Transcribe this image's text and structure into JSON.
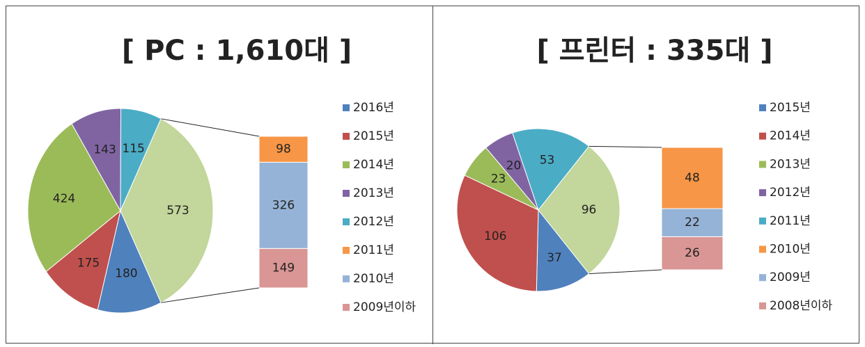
{
  "chart_data": [
    {
      "type": "pie",
      "title": "[ PC : 1,610대 ]",
      "categories": [
        "2016년",
        "2015년",
        "2014년",
        "2013년",
        "2012년",
        "2011년",
        "2010년",
        "2009년이하"
      ],
      "values": [
        180,
        175,
        424,
        143,
        115,
        98,
        326,
        149
      ],
      "colors": [
        "#4f81bd",
        "#c0504d",
        "#9bbb59",
        "#8064a2",
        "#4bacc6",
        "#f79646",
        "#95b3d7",
        "#d99694"
      ],
      "pie_count": 5,
      "other_value": 573,
      "other_color": "#c3d69b"
    },
    {
      "type": "pie",
      "title": "[ 프린터 : 335대 ]",
      "categories": [
        "2015년",
        "2014년",
        "2013년",
        "2012년",
        "2011년",
        "2010년",
        "2009년",
        "2008년이하"
      ],
      "values": [
        37,
        106,
        23,
        20,
        53,
        48,
        22,
        26
      ],
      "colors": [
        "#4f81bd",
        "#c0504d",
        "#9bbb59",
        "#8064a2",
        "#4bacc6",
        "#f79646",
        "#95b3d7",
        "#d99694"
      ],
      "pie_count": 5,
      "other_value": 96,
      "other_color": "#c3d69b"
    }
  ]
}
